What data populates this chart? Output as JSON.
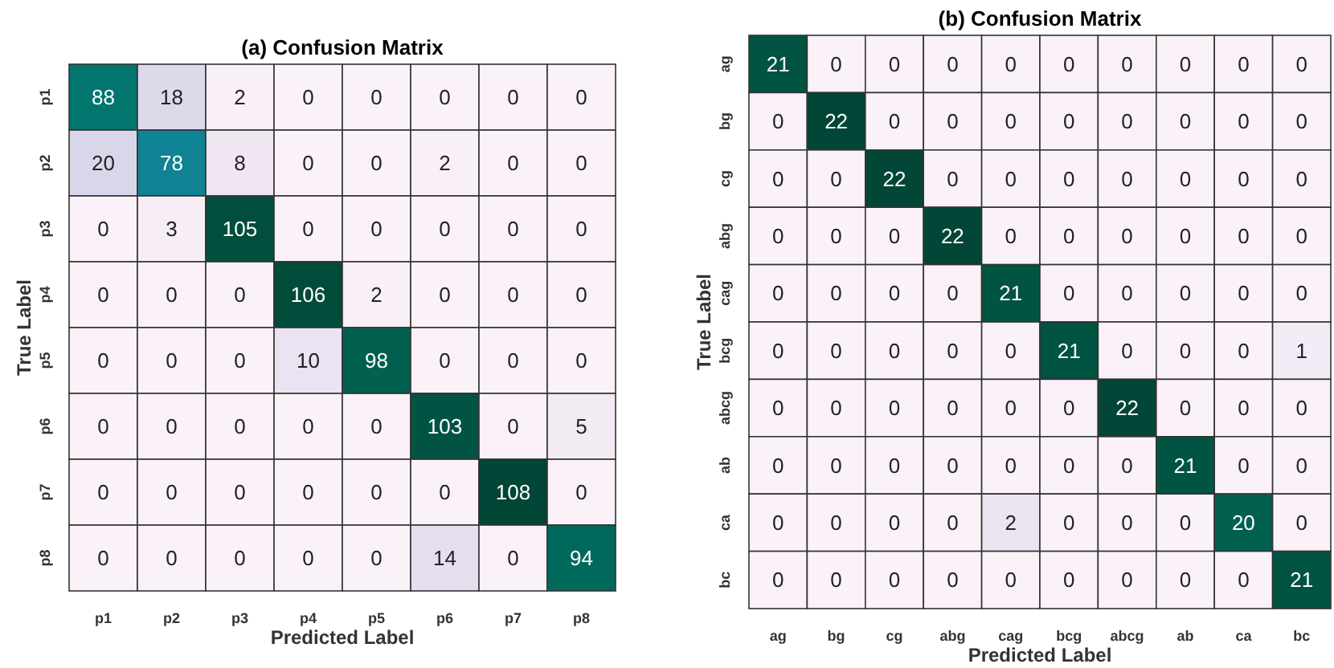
{
  "chart_data": [
    {
      "type": "heatmap",
      "title": "(a)  Confusion Matrix",
      "xlabel": "Predicted Label",
      "ylabel": "True Label",
      "categories": [
        "p1",
        "p2",
        "p3",
        "p4",
        "p5",
        "p6",
        "p7",
        "p8"
      ],
      "y_categories": [
        "p1",
        "p2",
        "p3",
        "p4",
        "p5",
        "p6",
        "p7",
        "p8"
      ],
      "data_labels": true,
      "cells": [
        [
          88,
          18,
          2,
          0,
          0,
          0,
          0,
          0
        ],
        [
          20,
          78,
          8,
          0,
          0,
          2,
          0,
          0
        ],
        [
          0,
          3,
          105,
          0,
          0,
          0,
          0,
          0
        ],
        [
          0,
          0,
          0,
          106,
          2,
          0,
          0,
          0
        ],
        [
          0,
          0,
          0,
          10,
          98,
          0,
          0,
          0
        ],
        [
          0,
          0,
          0,
          0,
          0,
          103,
          0,
          5
        ],
        [
          0,
          0,
          0,
          0,
          0,
          0,
          108,
          0
        ],
        [
          0,
          0,
          0,
          0,
          0,
          14,
          0,
          94
        ]
      ]
    },
    {
      "type": "heatmap",
      "title": "(b)  Confusion Matrix",
      "xlabel": "Predicted Label",
      "ylabel": "True Label",
      "categories": [
        "ag",
        "bg",
        "cg",
        "abg",
        "cag",
        "bcg",
        "abcg",
        "ab",
        "ca",
        "bc"
      ],
      "y_categories": [
        "ag",
        "bg",
        "cg",
        "abg",
        "cag",
        "bcg",
        "abcg",
        "ab",
        "ca",
        "bc"
      ],
      "data_labels": true,
      "cells": [
        [
          21,
          0,
          0,
          0,
          0,
          0,
          0,
          0,
          0,
          0
        ],
        [
          0,
          22,
          0,
          0,
          0,
          0,
          0,
          0,
          0,
          0
        ],
        [
          0,
          0,
          22,
          0,
          0,
          0,
          0,
          0,
          0,
          0
        ],
        [
          0,
          0,
          0,
          22,
          0,
          0,
          0,
          0,
          0,
          0
        ],
        [
          0,
          0,
          0,
          0,
          21,
          0,
          0,
          0,
          0,
          0
        ],
        [
          0,
          0,
          0,
          0,
          0,
          21,
          0,
          0,
          0,
          1
        ],
        [
          0,
          0,
          0,
          0,
          0,
          0,
          22,
          0,
          0,
          0
        ],
        [
          0,
          0,
          0,
          0,
          0,
          0,
          0,
          21,
          0,
          0
        ],
        [
          0,
          0,
          0,
          0,
          2,
          0,
          0,
          0,
          20,
          0
        ],
        [
          0,
          0,
          0,
          0,
          0,
          0,
          0,
          0,
          0,
          21
        ]
      ]
    }
  ]
}
